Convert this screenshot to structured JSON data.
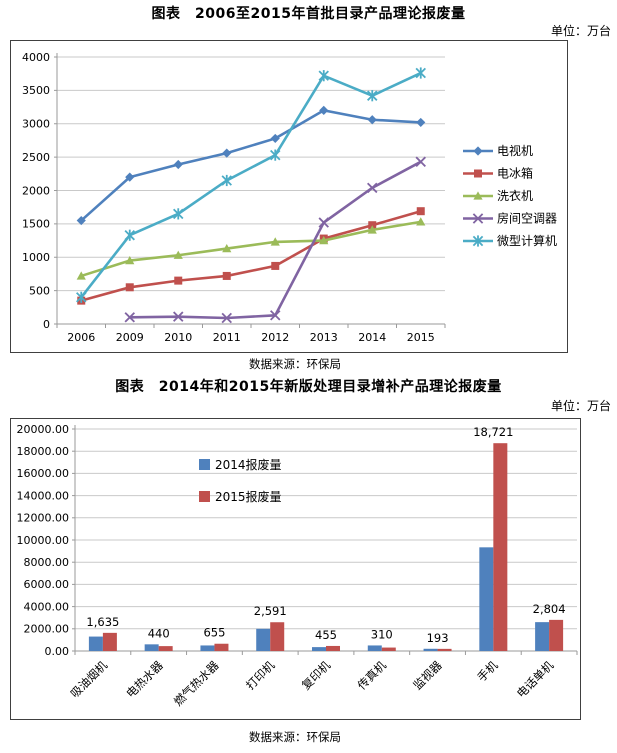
{
  "chart_data": [
    {
      "type": "line",
      "title": "图表　2006至2015年首批目录产品理论报废量",
      "unit": "单位：万台",
      "source": "数据来源：环保局",
      "categories": [
        "2006",
        "2009",
        "2010",
        "2011",
        "2012",
        "2013",
        "2014",
        "2015"
      ],
      "series": [
        {
          "name": "电视机",
          "color": "#4F81BD",
          "marker": "diamond",
          "values": [
            1550,
            2200,
            2390,
            2560,
            2780,
            3200,
            3060,
            3020
          ]
        },
        {
          "name": "电冰箱",
          "color": "#C0504D",
          "marker": "square",
          "values": [
            350,
            550,
            650,
            720,
            870,
            1280,
            1480,
            1690
          ]
        },
        {
          "name": "洗衣机",
          "color": "#9BBB59",
          "marker": "triangle",
          "values": [
            720,
            950,
            1030,
            1130,
            1230,
            1250,
            1410,
            1530
          ]
        },
        {
          "name": "房间空调器",
          "color": "#8064A2",
          "marker": "x",
          "values": [
            null,
            100,
            110,
            90,
            130,
            1520,
            2040,
            2430
          ]
        },
        {
          "name": "微型计算机",
          "color": "#4BACC6",
          "marker": "star",
          "values": [
            400,
            1330,
            1650,
            2150,
            2530,
            3720,
            3420,
            3760
          ]
        }
      ],
      "ylim": [
        0,
        4000
      ],
      "ytick": 500,
      "ytick_decimals": 0,
      "grid": true,
      "legend_position": "right"
    },
    {
      "type": "bar",
      "title": "图表　2014年和2015年新版处理目录增补产品理论报废量",
      "unit": "单位：万台",
      "source": "数据来源：环保局",
      "categories": [
        "吸油烟机",
        "电热水器",
        "燃气热水器",
        "打印机",
        "复印机",
        "传真机",
        "监视器",
        "手机",
        "电话单机"
      ],
      "series": [
        {
          "name": "2014报废量",
          "color": "#4F81BD",
          "values": [
            1300,
            600,
            500,
            2000,
            350,
            500,
            200,
            9340,
            2600
          ]
        },
        {
          "name": "2015报废量",
          "color": "#C0504D",
          "values": [
            1635,
            440,
            655,
            2591,
            455,
            310,
            193,
            18721,
            2804
          ]
        }
      ],
      "data_labels": [
        "1,635",
        "440",
        "655",
        "2,591",
        "455",
        "310",
        "193",
        "18,721",
        "2,804"
      ],
      "ylim": [
        0,
        20000
      ],
      "ytick": 2000,
      "ytick_decimals": 2,
      "grid": true,
      "legend_position": "inside-top-left"
    }
  ],
  "colors": {
    "axis": "#9a9a9a",
    "grid": "#c9c9c9",
    "text": "#000000"
  }
}
